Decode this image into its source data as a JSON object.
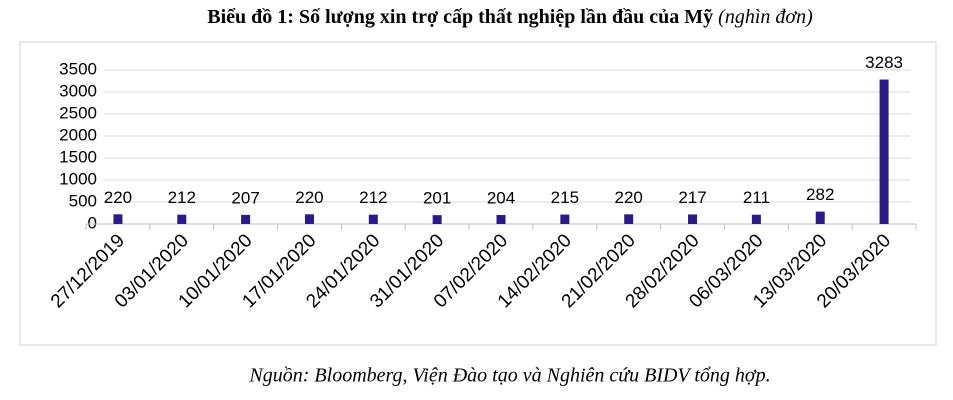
{
  "chart_data": {
    "type": "bar",
    "title": "Biểu đồ 1: Số lượng xin trợ cấp thất nghiệp lần đầu của Mỹ",
    "unit": "(nghìn đơn)",
    "source": "Nguồn: Bloomberg, Viện Đào tạo và Nghiên cứu BIDV tổng hợp.",
    "categories": [
      "27/12/2019",
      "03/01/2020",
      "10/01/2020",
      "17/01/2020",
      "24/01/2020",
      "31/01/2020",
      "07/02/2020",
      "14/02/2020",
      "21/02/2020",
      "28/02/2020",
      "06/03/2020",
      "13/03/2020",
      "20/03/2020"
    ],
    "values": [
      220,
      212,
      207,
      220,
      212,
      201,
      204,
      215,
      220,
      217,
      211,
      282,
      3283
    ],
    "color": "#2a1a8a",
    "ylim": [
      0,
      3500
    ],
    "yticks": [
      0,
      500,
      1000,
      1500,
      2000,
      2500,
      3000,
      3500
    ],
    "grid": true
  }
}
